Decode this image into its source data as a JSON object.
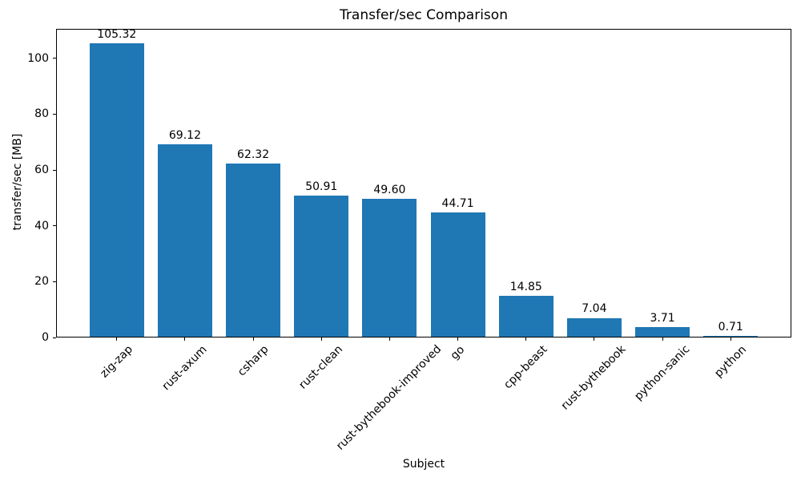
{
  "chart_data": {
    "type": "bar",
    "title": "Transfer/sec Comparison",
    "xlabel": "Subject",
    "ylabel": "transfer/sec [MB]",
    "categories": [
      "zig-zap",
      "rust-axum",
      "csharp",
      "rust-clean",
      "rust-bythebook-improved",
      "go",
      "cpp-beast",
      "rust-bythebook",
      "python-sanic",
      "python"
    ],
    "values": [
      105.32,
      69.12,
      62.32,
      50.91,
      49.6,
      44.71,
      14.85,
      7.04,
      3.71,
      0.71
    ],
    "value_labels": [
      "105.32",
      "69.12",
      "62.32",
      "50.91",
      "49.60",
      "44.71",
      "14.85",
      "7.04",
      "3.71",
      "0.71"
    ],
    "yticks": [
      0,
      20,
      40,
      60,
      80,
      100
    ],
    "ylim": [
      0,
      110.59
    ],
    "x_tick_rotation_deg": 45,
    "grid": false,
    "legend": null,
    "bar_color": "#1f77b4",
    "axis_color": "#000000",
    "text_color": "#000000",
    "background_color": "#ffffff"
  }
}
